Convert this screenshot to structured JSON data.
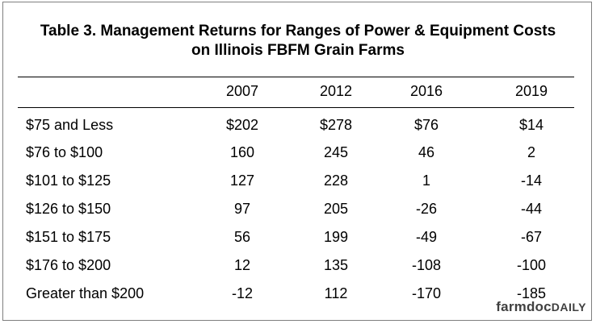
{
  "title_line1": "Table 3. Management Returns for Ranges of Power & Equipment Costs",
  "title_line2": "on Illinois FBFM Grain Farms",
  "columns": [
    "2007",
    "2012",
    "2016",
    "2019"
  ],
  "rows": [
    {
      "label": "$75 and Less",
      "values": [
        "$202",
        "$278",
        "$76",
        "$14"
      ]
    },
    {
      "label": "$76 to $100",
      "values": [
        "160",
        "245",
        "46",
        "2"
      ]
    },
    {
      "label": "$101 to $125",
      "values": [
        "127",
        "228",
        "1",
        "-14"
      ]
    },
    {
      "label": "$126 to $150",
      "values": [
        "97",
        "205",
        "-26",
        "-44"
      ]
    },
    {
      "label": "$151 to $175",
      "values": [
        "56",
        "199",
        "-49",
        "-67"
      ]
    },
    {
      "label": "$176 to $200",
      "values": [
        "12",
        "135",
        "-108",
        "-100"
      ]
    },
    {
      "label": "Greater than $200",
      "values": [
        "-12",
        "112",
        "-170",
        "-185"
      ]
    }
  ],
  "brand": {
    "part1": "farmdoc",
    "part2": "DAILY"
  }
}
